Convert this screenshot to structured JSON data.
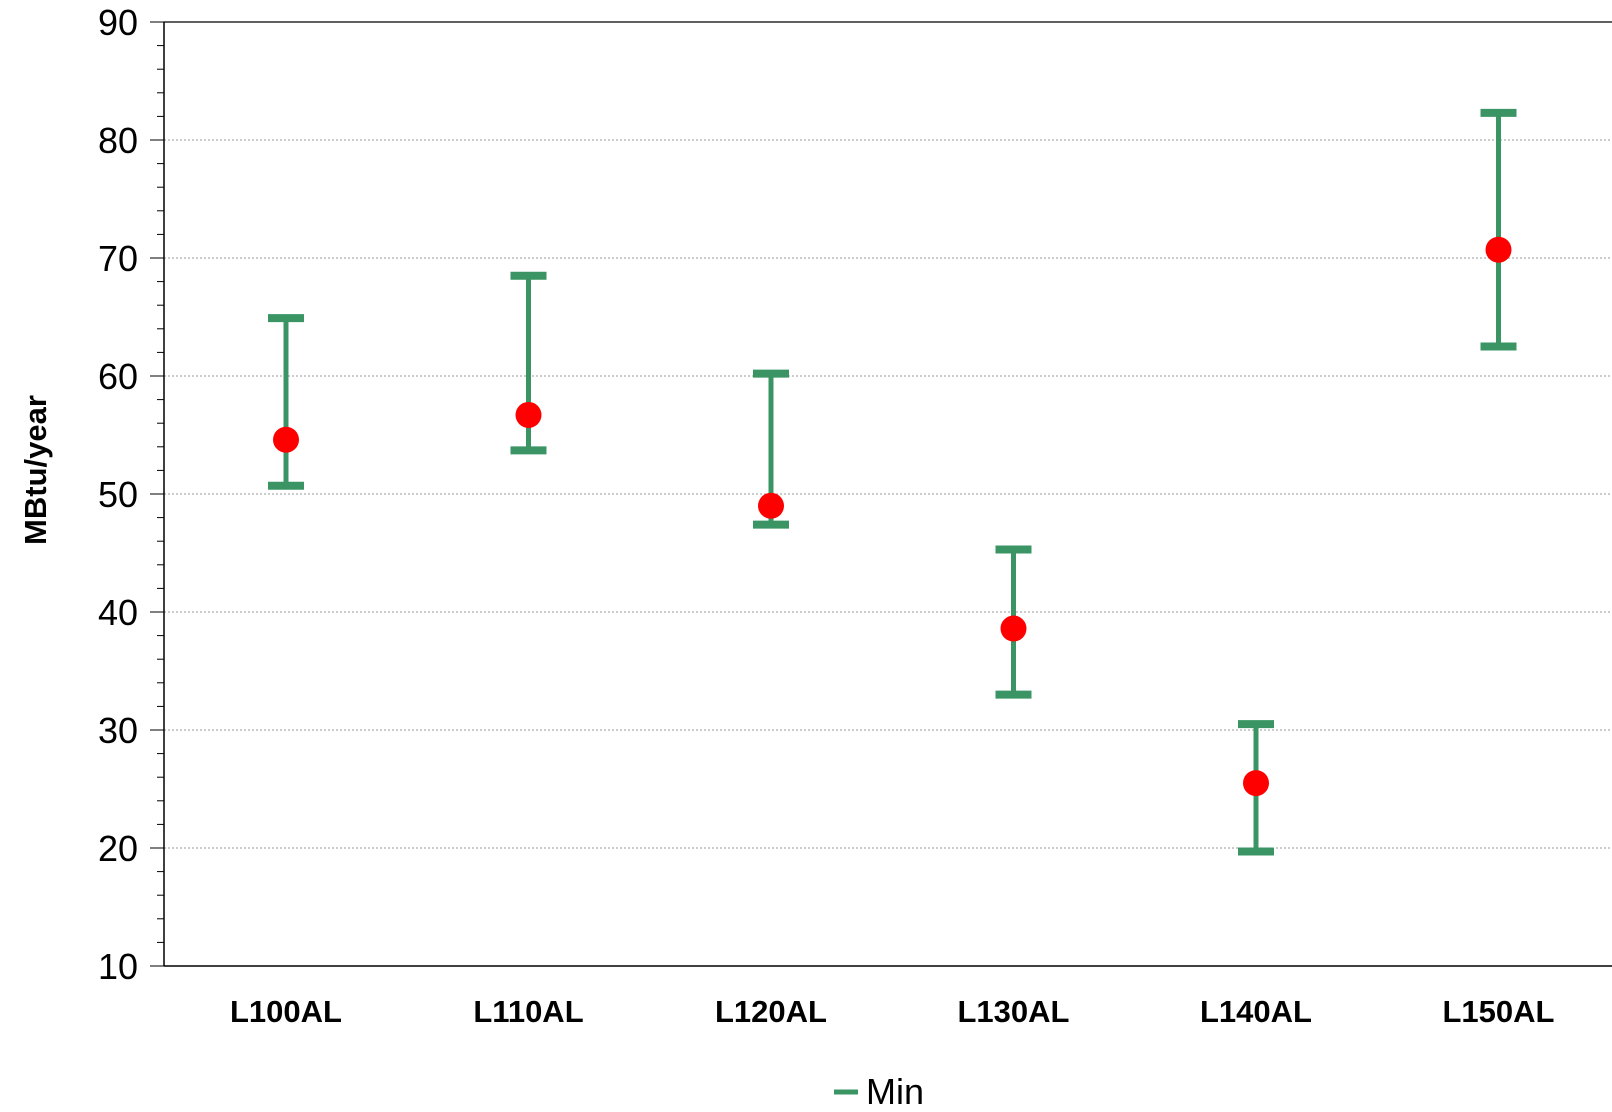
{
  "chart_data": {
    "type": "scatter",
    "ylabel": "MBtu/year",
    "ylim": [
      10,
      90
    ],
    "yticks": [
      10,
      20,
      30,
      40,
      50,
      60,
      70,
      80,
      90
    ],
    "grid": true,
    "legend_position": "bottom-center",
    "categories": [
      "L100AL",
      "L110AL",
      "L120AL",
      "L130AL",
      "L140AL",
      "L150AL"
    ],
    "series": [
      {
        "name": "Min",
        "type": "range",
        "color": "#3a9464",
        "low": [
          50.7,
          53.7,
          47.4,
          33.0,
          19.7,
          62.5
        ],
        "high": [
          64.9,
          68.5,
          60.2,
          45.3,
          30.5,
          82.3
        ]
      },
      {
        "type": "point",
        "color": "#ff0000",
        "values": [
          54.6,
          56.7,
          49.0,
          38.6,
          25.5,
          70.7
        ]
      }
    ]
  }
}
